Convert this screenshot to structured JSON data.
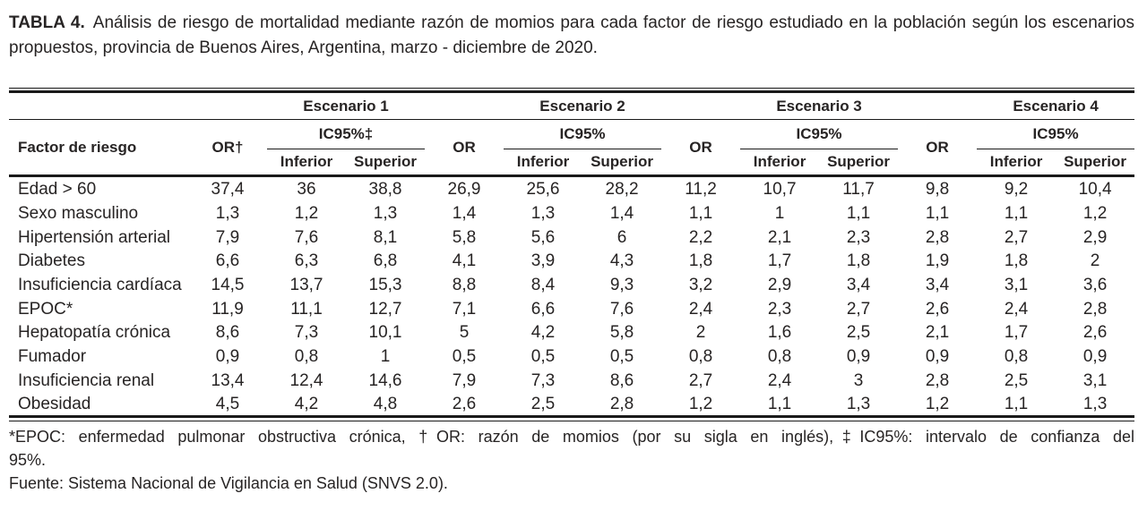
{
  "colors": {
    "text": "#272424",
    "rule": "#1a1a1a",
    "background": "#ffffff"
  },
  "caption": {
    "label": "TABLA 4.",
    "line1_rest": "Análisis de riesgo de mortalidad mediante razón de momios para cada factor de riesgo estudiado en la población según los escenarios",
    "line2": "propuestos, provincia de Buenos Aires, Argentina, marzo - diciembre de 2020."
  },
  "table": {
    "header": {
      "factor": "Factor de riesgo",
      "or_first": "OR†",
      "or": "OR",
      "inferior": "Inferior",
      "superior": "Superior",
      "scenarios": [
        {
          "label": "Escenario 1",
          "ic": "IC95%‡"
        },
        {
          "label": "Escenario 2",
          "ic": "IC95%"
        },
        {
          "label": "Escenario 3",
          "ic": "IC95%"
        },
        {
          "label": "Escenario 4",
          "ic": "IC95%"
        }
      ]
    },
    "rows": [
      {
        "factor": "Edad > 60",
        "values": [
          "37,4",
          "36",
          "38,8",
          "26,9",
          "25,6",
          "28,2",
          "11,2",
          "10,7",
          "11,7",
          "9,8",
          "9,2",
          "10,4"
        ]
      },
      {
        "factor": "Sexo masculino",
        "values": [
          "1,3",
          "1,2",
          "1,3",
          "1,4",
          "1,3",
          "1,4",
          "1,1",
          "1",
          "1,1",
          "1,1",
          "1,1",
          "1,2"
        ]
      },
      {
        "factor": "Hipertensión arterial",
        "values": [
          "7,9",
          "7,6",
          "8,1",
          "5,8",
          "5,6",
          "6",
          "2,2",
          "2,1",
          "2,3",
          "2,8",
          "2,7",
          "2,9"
        ]
      },
      {
        "factor": "Diabetes",
        "values": [
          "6,6",
          "6,3",
          "6,8",
          "4,1",
          "3,9",
          "4,3",
          "1,8",
          "1,7",
          "1,8",
          "1,9",
          "1,8",
          "2"
        ]
      },
      {
        "factor": "Insuficiencia cardíaca",
        "values": [
          "14,5",
          "13,7",
          "15,3",
          "8,8",
          "8,4",
          "9,3",
          "3,2",
          "2,9",
          "3,4",
          "3,4",
          "3,1",
          "3,6"
        ]
      },
      {
        "factor": "EPOC*",
        "values": [
          "11,9",
          "11,1",
          "12,7",
          "7,1",
          "6,6",
          "7,6",
          "2,4",
          "2,3",
          "2,7",
          "2,6",
          "2,4",
          "2,8"
        ]
      },
      {
        "factor": "Hepatopatía crónica",
        "values": [
          "8,6",
          "7,3",
          "10,1",
          "5",
          "4,2",
          "5,8",
          "2",
          "1,6",
          "2,5",
          "2,1",
          "1,7",
          "2,6"
        ]
      },
      {
        "factor": "Fumador",
        "values": [
          "0,9",
          "0,8",
          "1",
          "0,5",
          "0,5",
          "0,5",
          "0,8",
          "0,8",
          "0,9",
          "0,9",
          "0,8",
          "0,9"
        ]
      },
      {
        "factor": "Insuficiencia renal",
        "values": [
          "13,4",
          "12,4",
          "14,6",
          "7,9",
          "7,3",
          "8,6",
          "2,7",
          "2,4",
          "3",
          "2,8",
          "2,5",
          "3,1"
        ]
      },
      {
        "factor": "Obesidad",
        "values": [
          "4,5",
          "4,2",
          "4,8",
          "2,6",
          "2,5",
          "2,8",
          "1,2",
          "1,1",
          "1,3",
          "1,2",
          "1,1",
          "1,3"
        ]
      }
    ]
  },
  "footnotes": {
    "line1": "*EPOC: enfermedad pulmonar obstructiva crónica, †OR: razón de momios (por su sigla en inglés),‡IC95%: intervalo de confianza del",
    "line2": "95%.",
    "source": "Fuente: Sistema Nacional de Vigilancia en Salud (SNVS 2.0)."
  }
}
